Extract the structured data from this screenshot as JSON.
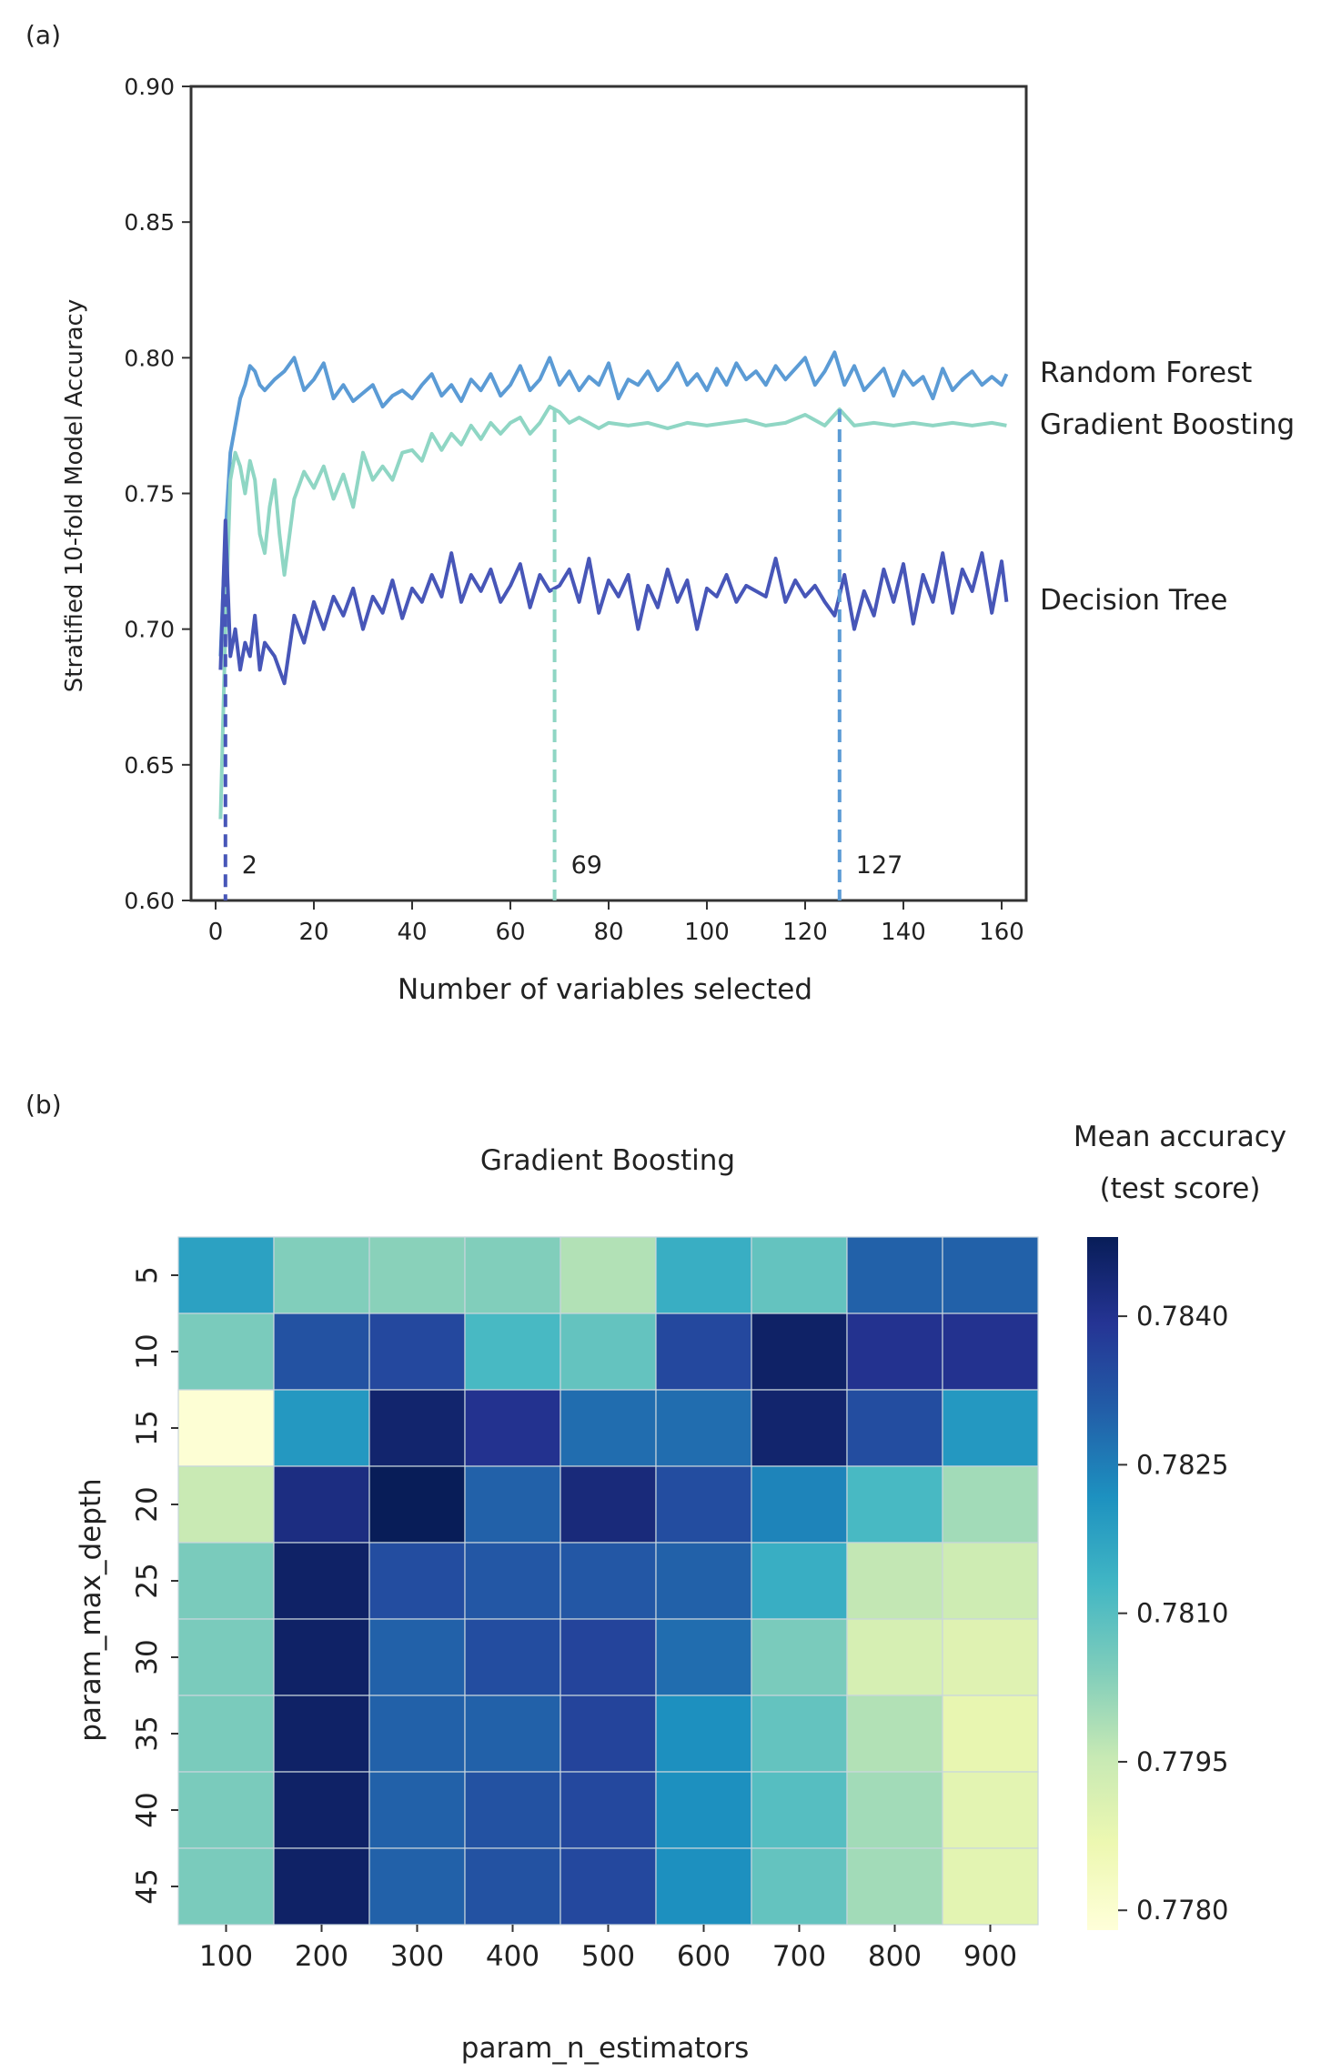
{
  "panels": {
    "a_label": "(a)",
    "b_label": "(b)"
  },
  "chart_data": [
    {
      "type": "line",
      "title": "",
      "xlabel": "Number of variables selected",
      "ylabel": "Stratified 10-fold Model Accuracy",
      "xlim": [
        -5,
        165
      ],
      "ylim": [
        0.6,
        0.9
      ],
      "xticks": [
        0,
        20,
        40,
        60,
        80,
        100,
        120,
        140,
        160
      ],
      "yticks": [
        0.6,
        0.65,
        0.7,
        0.75,
        0.8,
        0.85,
        0.9
      ],
      "ytick_labels": [
        "0.60",
        "0.65",
        "0.70",
        "0.75",
        "0.80",
        "0.85",
        "0.90"
      ],
      "x_tick_labels": [
        "0",
        "20",
        "40",
        "60",
        "80",
        "100",
        "120",
        "140",
        "160"
      ],
      "grid": false,
      "series": [
        {
          "name": "Random Forest",
          "color": "#5b9bd5",
          "x": [
            1,
            2,
            3,
            4,
            5,
            6,
            7,
            8,
            9,
            10,
            12,
            14,
            16,
            18,
            20,
            22,
            24,
            26,
            28,
            30,
            32,
            34,
            36,
            38,
            40,
            42,
            44,
            46,
            48,
            50,
            52,
            54,
            56,
            58,
            60,
            62,
            64,
            66,
            68,
            70,
            72,
            74,
            76,
            78,
            80,
            82,
            84,
            86,
            88,
            90,
            92,
            94,
            96,
            98,
            100,
            102,
            104,
            106,
            108,
            110,
            112,
            114,
            116,
            118,
            120,
            122,
            124,
            126,
            128,
            130,
            132,
            134,
            136,
            138,
            140,
            142,
            144,
            146,
            148,
            150,
            152,
            154,
            156,
            158,
            160,
            161
          ],
          "values": [
            0.69,
            0.735,
            0.765,
            0.775,
            0.785,
            0.79,
            0.797,
            0.795,
            0.79,
            0.788,
            0.792,
            0.795,
            0.8,
            0.788,
            0.792,
            0.798,
            0.785,
            0.79,
            0.784,
            0.787,
            0.79,
            0.782,
            0.786,
            0.788,
            0.785,
            0.79,
            0.794,
            0.786,
            0.79,
            0.784,
            0.792,
            0.788,
            0.794,
            0.786,
            0.79,
            0.797,
            0.788,
            0.792,
            0.8,
            0.79,
            0.795,
            0.788,
            0.793,
            0.79,
            0.798,
            0.785,
            0.792,
            0.79,
            0.795,
            0.788,
            0.792,
            0.798,
            0.79,
            0.794,
            0.788,
            0.796,
            0.79,
            0.798,
            0.792,
            0.795,
            0.79,
            0.797,
            0.792,
            0.796,
            0.8,
            0.79,
            0.795,
            0.802,
            0.79,
            0.797,
            0.788,
            0.792,
            0.796,
            0.786,
            0.795,
            0.79,
            0.793,
            0.785,
            0.796,
            0.788,
            0.792,
            0.795,
            0.79,
            0.793,
            0.79,
            0.794
          ]
        },
        {
          "name": "Gradient Boosting",
          "color": "#8fd6c4",
          "x": [
            1,
            2,
            3,
            4,
            5,
            6,
            7,
            8,
            9,
            10,
            11,
            12,
            13,
            14,
            16,
            18,
            20,
            22,
            24,
            26,
            28,
            30,
            32,
            34,
            36,
            38,
            40,
            42,
            44,
            46,
            48,
            50,
            52,
            54,
            56,
            58,
            60,
            62,
            64,
            66,
            68,
            70,
            72,
            74,
            76,
            78,
            80,
            84,
            88,
            92,
            96,
            100,
            104,
            108,
            112,
            116,
            120,
            124,
            127,
            130,
            134,
            138,
            142,
            146,
            150,
            154,
            158,
            161
          ],
          "values": [
            0.63,
            0.7,
            0.755,
            0.765,
            0.76,
            0.75,
            0.762,
            0.755,
            0.735,
            0.728,
            0.745,
            0.755,
            0.735,
            0.72,
            0.748,
            0.758,
            0.752,
            0.76,
            0.748,
            0.757,
            0.745,
            0.765,
            0.755,
            0.76,
            0.755,
            0.765,
            0.766,
            0.762,
            0.772,
            0.766,
            0.772,
            0.768,
            0.775,
            0.77,
            0.776,
            0.772,
            0.776,
            0.778,
            0.772,
            0.776,
            0.782,
            0.78,
            0.776,
            0.778,
            0.776,
            0.774,
            0.776,
            0.775,
            0.776,
            0.774,
            0.776,
            0.775,
            0.776,
            0.777,
            0.775,
            0.776,
            0.779,
            0.775,
            0.781,
            0.775,
            0.776,
            0.775,
            0.776,
            0.775,
            0.776,
            0.775,
            0.776,
            0.775
          ]
        },
        {
          "name": "Decision Tree",
          "color": "#4756b8",
          "x": [
            1,
            2,
            3,
            4,
            5,
            6,
            7,
            8,
            9,
            10,
            12,
            14,
            16,
            18,
            20,
            22,
            24,
            26,
            28,
            30,
            32,
            34,
            36,
            38,
            40,
            42,
            44,
            46,
            48,
            50,
            52,
            54,
            56,
            58,
            60,
            62,
            64,
            66,
            68,
            70,
            72,
            74,
            76,
            78,
            80,
            82,
            84,
            86,
            88,
            90,
            92,
            94,
            96,
            98,
            100,
            102,
            104,
            106,
            108,
            110,
            112,
            114,
            116,
            118,
            120,
            122,
            124,
            126,
            128,
            130,
            132,
            134,
            136,
            138,
            140,
            142,
            144,
            146,
            148,
            150,
            152,
            154,
            156,
            158,
            160,
            161
          ],
          "values": [
            0.685,
            0.74,
            0.69,
            0.7,
            0.685,
            0.695,
            0.69,
            0.705,
            0.685,
            0.695,
            0.69,
            0.68,
            0.705,
            0.695,
            0.71,
            0.7,
            0.712,
            0.705,
            0.715,
            0.7,
            0.712,
            0.706,
            0.718,
            0.704,
            0.715,
            0.71,
            0.72,
            0.712,
            0.728,
            0.71,
            0.72,
            0.714,
            0.722,
            0.71,
            0.716,
            0.724,
            0.708,
            0.72,
            0.714,
            0.716,
            0.722,
            0.71,
            0.726,
            0.706,
            0.718,
            0.712,
            0.72,
            0.7,
            0.716,
            0.708,
            0.722,
            0.71,
            0.718,
            0.7,
            0.715,
            0.712,
            0.72,
            0.71,
            0.716,
            0.714,
            0.712,
            0.726,
            0.71,
            0.718,
            0.712,
            0.716,
            0.71,
            0.705,
            0.72,
            0.7,
            0.714,
            0.705,
            0.722,
            0.71,
            0.724,
            0.702,
            0.72,
            0.71,
            0.728,
            0.706,
            0.722,
            0.714,
            0.728,
            0.706,
            0.725,
            0.71
          ]
        }
      ],
      "vlines": [
        {
          "x": 2,
          "ymax": 0.735,
          "color": "#4756b8",
          "label": "2"
        },
        {
          "x": 69,
          "ymax": 0.781,
          "color": "#8fd6c4",
          "label": "69"
        },
        {
          "x": 127,
          "ymax": 0.781,
          "color": "#5b9bd5",
          "label": "127"
        }
      ],
      "legend_placement": "right",
      "legend_labels": [
        "Random Forest",
        "Gradient Boosting",
        "Decision Tree"
      ]
    },
    {
      "type": "heatmap",
      "title": "Gradient Boosting",
      "xlabel": "param_n_estimators",
      "ylabel": "param_max_depth",
      "x_categories": [
        "100",
        "200",
        "300",
        "400",
        "500",
        "600",
        "700",
        "800",
        "900"
      ],
      "y_categories": [
        "5",
        "10",
        "15",
        "20",
        "25",
        "30",
        "35",
        "40",
        "45"
      ],
      "values": [
        [
          0.7818,
          0.7804,
          0.7803,
          0.7804,
          0.7798,
          0.7815,
          0.7808,
          0.783,
          0.783
        ],
        [
          0.7805,
          0.7833,
          0.7835,
          0.7812,
          0.7808,
          0.7835,
          0.7846,
          0.784,
          0.784
        ],
        [
          0.7779,
          0.782,
          0.7845,
          0.784,
          0.7828,
          0.7828,
          0.7845,
          0.7834,
          0.782
        ],
        [
          0.7795,
          0.7842,
          0.7848,
          0.783,
          0.7843,
          0.7834,
          0.7824,
          0.7812,
          0.78
        ],
        [
          0.7805,
          0.7846,
          0.7834,
          0.7832,
          0.7832,
          0.783,
          0.7815,
          0.7796,
          0.7794
        ],
        [
          0.7805,
          0.7846,
          0.783,
          0.7834,
          0.7836,
          0.7828,
          0.7805,
          0.7792,
          0.779
        ],
        [
          0.7805,
          0.7846,
          0.783,
          0.783,
          0.7836,
          0.7822,
          0.7808,
          0.7798,
          0.7788
        ],
        [
          0.7805,
          0.7846,
          0.783,
          0.7833,
          0.7835,
          0.7822,
          0.781,
          0.78,
          0.7789
        ],
        [
          0.7805,
          0.7846,
          0.783,
          0.7833,
          0.7835,
          0.7822,
          0.7808,
          0.78,
          0.7789
        ]
      ],
      "colorbar": {
        "label_line1": "Mean accuracy",
        "label_line2": "(test score)",
        "range": [
          0.7778,
          0.7848
        ],
        "ticks": [
          0.778,
          0.7795,
          0.781,
          0.7825,
          0.784
        ],
        "tick_labels": [
          "0.7780",
          "0.7795",
          "0.7810",
          "0.7825",
          "0.7840"
        ],
        "colormap": "YlGnBu"
      }
    }
  ]
}
